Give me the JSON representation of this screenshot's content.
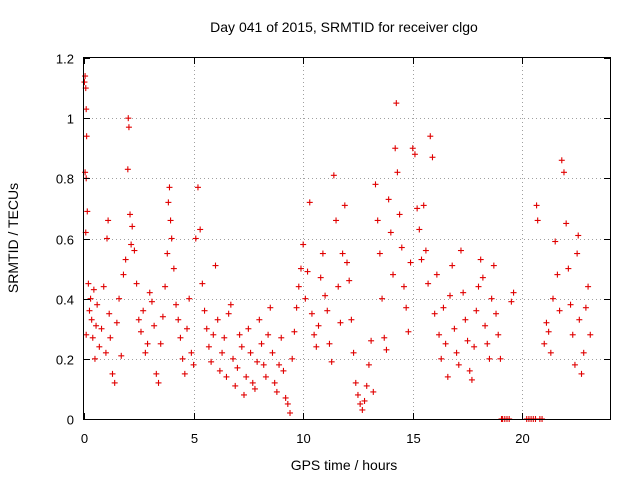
{
  "chart_data": {
    "type": "scatter",
    "title": "Day 041 of 2015, SRMTID for receiver clgo",
    "xlabel": "GPS time / hours",
    "ylabel": "SRMTID / TECUs",
    "xlim": [
      0,
      24
    ],
    "ylim": [
      0,
      1.2
    ],
    "xticks": [
      0,
      5,
      10,
      15,
      20
    ],
    "xtick_labels": [
      "0",
      "5",
      "10",
      "15",
      "20"
    ],
    "yticks": [
      0,
      0.2,
      0.4,
      0.6,
      0.8,
      1.0,
      1.2
    ],
    "ytick_labels": [
      "0",
      "0.2",
      "0.4",
      "0.6",
      "0.8",
      "1",
      "1.2"
    ],
    "grid": true,
    "marker": "+",
    "marker_color": "#e00000",
    "series": [
      {
        "name": "SRMTID",
        "points": [
          [
            0.02,
            1.12
          ],
          [
            0.05,
            1.14
          ],
          [
            0.08,
            1.1
          ],
          [
            0.1,
            1.03
          ],
          [
            0.12,
            0.94
          ],
          [
            0.05,
            0.82
          ],
          [
            0.1,
            0.8
          ],
          [
            0.15,
            0.69
          ],
          [
            0.08,
            0.62
          ],
          [
            0.2,
            0.45
          ],
          [
            0.1,
            0.28
          ],
          [
            0.25,
            0.36
          ],
          [
            0.3,
            0.4
          ],
          [
            0.35,
            0.33
          ],
          [
            0.4,
            0.27
          ],
          [
            0.45,
            0.43
          ],
          [
            0.5,
            0.2
          ],
          [
            0.55,
            0.31
          ],
          [
            0.6,
            0.38
          ],
          [
            0.7,
            0.24
          ],
          [
            0.8,
            0.3
          ],
          [
            0.9,
            0.44
          ],
          [
            1.0,
            0.22
          ],
          [
            1.05,
            0.6
          ],
          [
            1.1,
            0.66
          ],
          [
            1.15,
            0.35
          ],
          [
            1.2,
            0.27
          ],
          [
            1.3,
            0.15
          ],
          [
            1.4,
            0.12
          ],
          [
            1.5,
            0.32
          ],
          [
            1.6,
            0.4
          ],
          [
            1.7,
            0.21
          ],
          [
            1.8,
            0.48
          ],
          [
            1.9,
            0.53
          ],
          [
            2.0,
            0.83
          ],
          [
            2.02,
            1.0
          ],
          [
            2.05,
            0.97
          ],
          [
            2.1,
            0.68
          ],
          [
            2.15,
            0.58
          ],
          [
            2.2,
            0.64
          ],
          [
            2.3,
            0.56
          ],
          [
            2.4,
            0.45
          ],
          [
            2.5,
            0.33
          ],
          [
            2.6,
            0.29
          ],
          [
            2.7,
            0.36
          ],
          [
            2.8,
            0.22
          ],
          [
            2.9,
            0.25
          ],
          [
            3.0,
            0.42
          ],
          [
            3.1,
            0.39
          ],
          [
            3.2,
            0.31
          ],
          [
            3.3,
            0.15
          ],
          [
            3.4,
            0.12
          ],
          [
            3.5,
            0.25
          ],
          [
            3.6,
            0.34
          ],
          [
            3.7,
            0.44
          ],
          [
            3.8,
            0.55
          ],
          [
            3.85,
            0.72
          ],
          [
            3.9,
            0.77
          ],
          [
            3.95,
            0.66
          ],
          [
            4.0,
            0.6
          ],
          [
            4.1,
            0.5
          ],
          [
            4.2,
            0.38
          ],
          [
            4.3,
            0.33
          ],
          [
            4.4,
            0.27
          ],
          [
            4.5,
            0.2
          ],
          [
            4.6,
            0.15
          ],
          [
            4.7,
            0.3
          ],
          [
            4.8,
            0.4
          ],
          [
            4.9,
            0.22
          ],
          [
            5.0,
            0.18
          ],
          [
            5.1,
            0.6
          ],
          [
            5.2,
            0.77
          ],
          [
            5.3,
            0.63
          ],
          [
            5.4,
            0.45
          ],
          [
            5.5,
            0.36
          ],
          [
            5.6,
            0.3
          ],
          [
            5.7,
            0.24
          ],
          [
            5.8,
            0.19
          ],
          [
            5.9,
            0.28
          ],
          [
            6.0,
            0.51
          ],
          [
            6.1,
            0.33
          ],
          [
            6.2,
            0.16
          ],
          [
            6.3,
            0.22
          ],
          [
            6.4,
            0.27
          ],
          [
            6.5,
            0.14
          ],
          [
            6.6,
            0.35
          ],
          [
            6.7,
            0.38
          ],
          [
            6.8,
            0.2
          ],
          [
            6.9,
            0.11
          ],
          [
            7.0,
            0.17
          ],
          [
            7.1,
            0.28
          ],
          [
            7.2,
            0.24
          ],
          [
            7.3,
            0.08
          ],
          [
            7.4,
            0.14
          ],
          [
            7.5,
            0.3
          ],
          [
            7.6,
            0.22
          ],
          [
            7.7,
            0.12
          ],
          [
            7.8,
            0.1
          ],
          [
            7.9,
            0.19
          ],
          [
            8.0,
            0.33
          ],
          [
            8.1,
            0.25
          ],
          [
            8.2,
            0.18
          ],
          [
            8.3,
            0.14
          ],
          [
            8.4,
            0.28
          ],
          [
            8.5,
            0.37
          ],
          [
            8.6,
            0.22
          ],
          [
            8.7,
            0.12
          ],
          [
            8.8,
            0.09
          ],
          [
            8.9,
            0.18
          ],
          [
            9.0,
            0.27
          ],
          [
            9.1,
            0.16
          ],
          [
            9.2,
            0.07
          ],
          [
            9.3,
            0.05
          ],
          [
            9.4,
            0.02
          ],
          [
            9.5,
            0.2
          ],
          [
            9.6,
            0.29
          ],
          [
            9.7,
            0.37
          ],
          [
            9.8,
            0.44
          ],
          [
            9.9,
            0.5
          ],
          [
            10.0,
            0.58
          ],
          [
            10.1,
            0.4
          ],
          [
            10.2,
            0.49
          ],
          [
            10.3,
            0.72
          ],
          [
            10.4,
            0.35
          ],
          [
            10.5,
            0.28
          ],
          [
            10.6,
            0.24
          ],
          [
            10.7,
            0.31
          ],
          [
            10.8,
            0.47
          ],
          [
            10.9,
            0.55
          ],
          [
            11.0,
            0.41
          ],
          [
            11.1,
            0.36
          ],
          [
            11.2,
            0.25
          ],
          [
            11.3,
            0.19
          ],
          [
            11.4,
            0.81
          ],
          [
            11.5,
            0.66
          ],
          [
            11.6,
            0.44
          ],
          [
            11.7,
            0.32
          ],
          [
            11.8,
            0.55
          ],
          [
            11.9,
            0.71
          ],
          [
            12.0,
            0.52
          ],
          [
            12.1,
            0.46
          ],
          [
            12.2,
            0.33
          ],
          [
            12.3,
            0.22
          ],
          [
            12.4,
            0.12
          ],
          [
            12.5,
            0.08
          ],
          [
            12.6,
            0.05
          ],
          [
            12.7,
            0.03
          ],
          [
            12.8,
            0.06
          ],
          [
            12.9,
            0.11
          ],
          [
            13.0,
            0.18
          ],
          [
            13.1,
            0.26
          ],
          [
            13.2,
            0.09
          ],
          [
            13.3,
            0.78
          ],
          [
            13.4,
            0.66
          ],
          [
            13.5,
            0.55
          ],
          [
            13.6,
            0.4
          ],
          [
            13.7,
            0.27
          ],
          [
            13.8,
            0.23
          ],
          [
            13.9,
            0.73
          ],
          [
            14.0,
            0.62
          ],
          [
            14.1,
            0.48
          ],
          [
            14.2,
            0.9
          ],
          [
            14.25,
            1.05
          ],
          [
            14.3,
            0.82
          ],
          [
            14.4,
            0.68
          ],
          [
            14.5,
            0.57
          ],
          [
            14.6,
            0.44
          ],
          [
            14.7,
            0.37
          ],
          [
            14.8,
            0.29
          ],
          [
            14.9,
            0.52
          ],
          [
            15.0,
            0.9
          ],
          [
            15.1,
            0.88
          ],
          [
            15.2,
            0.7
          ],
          [
            15.3,
            0.63
          ],
          [
            15.4,
            0.53
          ],
          [
            15.5,
            0.71
          ],
          [
            15.6,
            0.56
          ],
          [
            15.7,
            0.45
          ],
          [
            15.8,
            0.94
          ],
          [
            15.9,
            0.87
          ],
          [
            16.0,
            0.35
          ],
          [
            16.1,
            0.48
          ],
          [
            16.2,
            0.28
          ],
          [
            16.3,
            0.2
          ],
          [
            16.4,
            0.37
          ],
          [
            16.5,
            0.25
          ],
          [
            16.6,
            0.14
          ],
          [
            16.7,
            0.41
          ],
          [
            16.8,
            0.51
          ],
          [
            16.9,
            0.3
          ],
          [
            17.0,
            0.22
          ],
          [
            17.1,
            0.18
          ],
          [
            17.2,
            0.56
          ],
          [
            17.3,
            0.42
          ],
          [
            17.4,
            0.33
          ],
          [
            17.5,
            0.26
          ],
          [
            17.6,
            0.16
          ],
          [
            17.7,
            0.13
          ],
          [
            17.8,
            0.24
          ],
          [
            17.9,
            0.36
          ],
          [
            18.0,
            0.44
          ],
          [
            18.1,
            0.53
          ],
          [
            18.2,
            0.47
          ],
          [
            18.3,
            0.31
          ],
          [
            18.4,
            0.25
          ],
          [
            18.5,
            0.2
          ],
          [
            18.6,
            0.4
          ],
          [
            18.7,
            0.51
          ],
          [
            18.8,
            0.35
          ],
          [
            18.9,
            0.28
          ],
          [
            19.0,
            0.2
          ],
          [
            19.05,
            0.0
          ],
          [
            19.1,
            0.0
          ],
          [
            19.2,
            0.0
          ],
          [
            19.3,
            0.0
          ],
          [
            19.4,
            0.0
          ],
          [
            19.5,
            0.39
          ],
          [
            19.6,
            0.42
          ],
          [
            20.2,
            0.0
          ],
          [
            20.3,
            0.0
          ],
          [
            20.4,
            0.0
          ],
          [
            20.5,
            0.0
          ],
          [
            20.6,
            0.0
          ],
          [
            20.65,
            0.71
          ],
          [
            20.7,
            0.66
          ],
          [
            20.8,
            0.0
          ],
          [
            20.9,
            0.0
          ],
          [
            21.0,
            0.25
          ],
          [
            21.1,
            0.32
          ],
          [
            21.2,
            0.29
          ],
          [
            21.3,
            0.22
          ],
          [
            21.4,
            0.4
          ],
          [
            21.5,
            0.59
          ],
          [
            21.6,
            0.48
          ],
          [
            21.7,
            0.36
          ],
          [
            21.8,
            0.86
          ],
          [
            21.9,
            0.82
          ],
          [
            22.0,
            0.65
          ],
          [
            22.1,
            0.5
          ],
          [
            22.2,
            0.38
          ],
          [
            22.3,
            0.28
          ],
          [
            22.4,
            0.18
          ],
          [
            22.5,
            0.55
          ],
          [
            22.55,
            0.61
          ],
          [
            22.6,
            0.33
          ],
          [
            22.7,
            0.15
          ],
          [
            22.8,
            0.22
          ],
          [
            22.9,
            0.37
          ],
          [
            23.0,
            0.44
          ],
          [
            23.1,
            0.28
          ]
        ]
      }
    ]
  }
}
